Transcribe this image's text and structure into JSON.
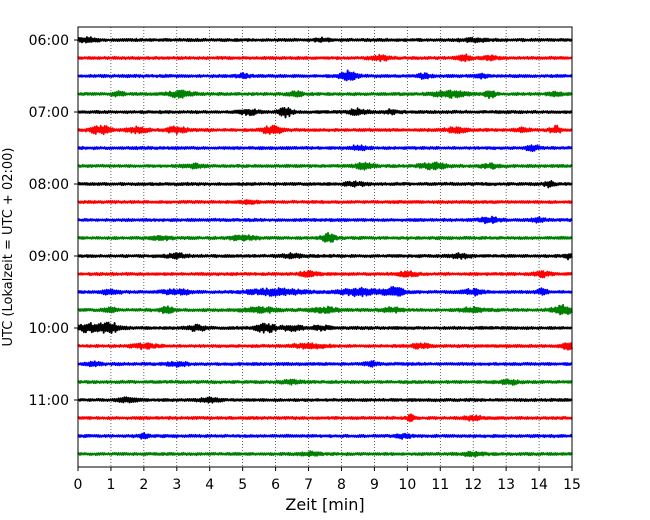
{
  "chart_data": {
    "type": "line",
    "subtype": "helicorder-seismogram",
    "xlabel": "Zeit  [min]",
    "ylabel": "UTC (Lokalzeit = UTC + 02:00)",
    "xlim": [
      0,
      15
    ],
    "x_ticks": [
      "0",
      "1",
      "2",
      "3",
      "4",
      "5",
      "6",
      "7",
      "8",
      "9",
      "10",
      "11",
      "12",
      "13",
      "14",
      "15"
    ],
    "y_ticks": [
      {
        "time": "06:00",
        "row": 0
      },
      {
        "time": "07:00",
        "row": 4
      },
      {
        "time": "08:00",
        "row": 8
      },
      {
        "time": "09:00",
        "row": 12
      },
      {
        "time": "10:00",
        "row": 16
      },
      {
        "time": "11:00",
        "row": 20
      }
    ],
    "grid": "vertical-dotted",
    "row_minutes": 15,
    "row_colors": [
      "#000000",
      "#ff0000",
      "#0000ff",
      "#008000"
    ],
    "rows": [
      {
        "start": "06:00",
        "color": "#000000",
        "bursts": [
          [
            0.3,
            0.3,
            2.0
          ],
          [
            7.4,
            0.2,
            1.8
          ],
          [
            12.0,
            0.4,
            1.6
          ]
        ]
      },
      {
        "start": "06:15",
        "color": "#ff0000",
        "bursts": [
          [
            9.2,
            0.3,
            2.0
          ],
          [
            11.7,
            0.2,
            3.0
          ],
          [
            12.5,
            0.2,
            2.0
          ]
        ]
      },
      {
        "start": "06:30",
        "color": "#0000ff",
        "bursts": [
          [
            5.0,
            0.2,
            1.8
          ],
          [
            8.2,
            0.25,
            4.5
          ],
          [
            10.5,
            0.2,
            2.0
          ],
          [
            12.3,
            0.2,
            2.0
          ]
        ]
      },
      {
        "start": "06:45",
        "color": "#008000",
        "bursts": [
          [
            1.2,
            0.2,
            2.0
          ],
          [
            3.1,
            0.4,
            2.8
          ],
          [
            6.6,
            0.2,
            2.5
          ],
          [
            11.3,
            0.5,
            3.2
          ],
          [
            12.5,
            0.15,
            4.5
          ],
          [
            14.5,
            0.2,
            1.8
          ]
        ]
      },
      {
        "start": "07:00",
        "color": "#000000",
        "bursts": [
          [
            5.2,
            0.3,
            2.5
          ],
          [
            6.3,
            0.2,
            4.5
          ],
          [
            8.5,
            0.3,
            2.5
          ],
          [
            9.5,
            0.2,
            2.0
          ]
        ]
      },
      {
        "start": "07:15",
        "color": "#ff0000",
        "bursts": [
          [
            0.7,
            0.3,
            4.0
          ],
          [
            1.8,
            0.3,
            2.5
          ],
          [
            3.0,
            0.3,
            3.0
          ],
          [
            5.9,
            0.3,
            4.0
          ],
          [
            11.5,
            0.3,
            2.5
          ],
          [
            13.5,
            0.2,
            2.0
          ],
          [
            14.5,
            0.15,
            3.5
          ]
        ]
      },
      {
        "start": "07:30",
        "color": "#0000ff",
        "bursts": [
          [
            8.5,
            0.3,
            2.0
          ],
          [
            13.8,
            0.2,
            2.5
          ]
        ]
      },
      {
        "start": "07:45",
        "color": "#008000",
        "bursts": [
          [
            3.5,
            0.3,
            1.8
          ],
          [
            8.7,
            0.3,
            2.5
          ],
          [
            10.8,
            0.4,
            3.0
          ],
          [
            12.5,
            0.3,
            2.0
          ]
        ]
      },
      {
        "start": "08:00",
        "color": "#000000",
        "bursts": [
          [
            8.4,
            0.3,
            1.8
          ],
          [
            14.3,
            0.15,
            2.5
          ]
        ]
      },
      {
        "start": "08:15",
        "color": "#ff0000",
        "bursts": [
          [
            5.2,
            0.2,
            1.8
          ]
        ]
      },
      {
        "start": "08:30",
        "color": "#0000ff",
        "bursts": [
          [
            12.5,
            0.3,
            2.5
          ],
          [
            14.0,
            0.2,
            2.0
          ]
        ]
      },
      {
        "start": "08:45",
        "color": "#008000",
        "bursts": [
          [
            2.5,
            0.3,
            1.8
          ],
          [
            5.0,
            0.4,
            2.0
          ],
          [
            7.6,
            0.2,
            4.5
          ]
        ]
      },
      {
        "start": "09:00",
        "color": "#000000",
        "bursts": [
          [
            3.0,
            0.3,
            2.0
          ],
          [
            6.5,
            0.3,
            2.0
          ],
          [
            11.6,
            0.3,
            2.0
          ],
          [
            14.9,
            0.1,
            2.5
          ]
        ]
      },
      {
        "start": "09:15",
        "color": "#ff0000",
        "bursts": [
          [
            7.0,
            0.3,
            2.0
          ],
          [
            10.0,
            0.3,
            2.0
          ],
          [
            14.1,
            0.2,
            2.5
          ]
        ]
      },
      {
        "start": "09:30",
        "color": "#0000ff",
        "bursts": [
          [
            1.0,
            0.3,
            2.0
          ],
          [
            3.0,
            0.4,
            2.5
          ],
          [
            6.0,
            0.8,
            3.0
          ],
          [
            8.5,
            0.6,
            3.5
          ],
          [
            9.6,
            0.3,
            5.5
          ],
          [
            12.0,
            0.3,
            2.5
          ],
          [
            14.1,
            0.15,
            3.0
          ]
        ]
      },
      {
        "start": "09:45",
        "color": "#008000",
        "bursts": [
          [
            1.0,
            0.2,
            2.5
          ],
          [
            2.7,
            0.2,
            3.0
          ],
          [
            5.5,
            0.5,
            2.5
          ],
          [
            7.5,
            0.4,
            2.5
          ],
          [
            9.5,
            0.3,
            2.5
          ],
          [
            12.0,
            0.4,
            2.0
          ],
          [
            14.7,
            0.3,
            4.5
          ]
        ]
      },
      {
        "start": "10:00",
        "color": "#000000",
        "bursts": [
          [
            0.4,
            0.4,
            4.5
          ],
          [
            1.0,
            0.3,
            4.5
          ],
          [
            3.6,
            0.3,
            2.5
          ],
          [
            5.7,
            0.3,
            4.0
          ],
          [
            6.5,
            0.3,
            2.5
          ],
          [
            7.4,
            0.3,
            2.0
          ]
        ]
      },
      {
        "start": "10:15",
        "color": "#ff0000",
        "bursts": [
          [
            2.0,
            0.4,
            2.0
          ],
          [
            7.0,
            0.5,
            2.0
          ],
          [
            10.4,
            0.3,
            2.0
          ],
          [
            14.9,
            0.2,
            3.0
          ]
        ]
      },
      {
        "start": "10:30",
        "color": "#0000ff",
        "bursts": [
          [
            0.5,
            0.2,
            1.8
          ],
          [
            3.0,
            0.3,
            2.0
          ],
          [
            8.9,
            0.2,
            2.0
          ]
        ]
      },
      {
        "start": "10:45",
        "color": "#008000",
        "bursts": [
          [
            6.5,
            0.3,
            1.8
          ],
          [
            13.1,
            0.3,
            2.0
          ]
        ]
      },
      {
        "start": "11:00",
        "color": "#000000",
        "bursts": [
          [
            1.5,
            0.3,
            1.8
          ],
          [
            4.0,
            0.3,
            1.8
          ]
        ]
      },
      {
        "start": "11:15",
        "color": "#ff0000",
        "bursts": [
          [
            10.1,
            0.1,
            3.0
          ],
          [
            12.0,
            0.3,
            1.8
          ]
        ]
      },
      {
        "start": "11:30",
        "color": "#0000ff",
        "bursts": [
          [
            2.0,
            0.2,
            2.0
          ],
          [
            9.9,
            0.2,
            2.0
          ]
        ]
      },
      {
        "start": "11:45",
        "color": "#008000",
        "bursts": [
          [
            7.0,
            0.3,
            1.8
          ],
          [
            12.0,
            0.3,
            1.8
          ]
        ]
      }
    ]
  }
}
